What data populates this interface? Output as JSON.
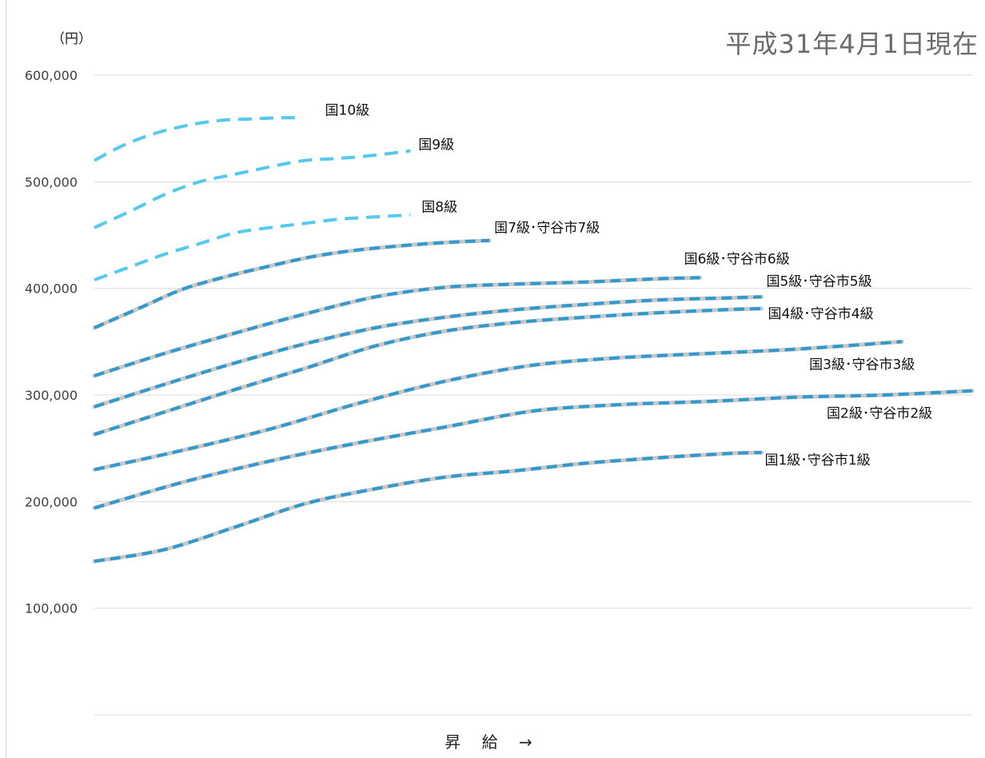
{
  "chart_data": {
    "type": "line",
    "title": "平成31年4月1日現在",
    "unit_label": "（円）",
    "xlabel": "昇 給 →",
    "ylabel": "",
    "ylim": [
      0,
      600000
    ],
    "yticks": [
      100000,
      200000,
      300000,
      400000,
      500000,
      600000
    ],
    "ytick_labels": [
      "100,000",
      "200,000",
      "300,000",
      "400,000",
      "500,000",
      "600,000"
    ],
    "xlim": [
      0,
      100
    ],
    "grid": true,
    "colors": {
      "national": "#3399cc",
      "national_upper": "#55c8f0",
      "city": "#c8c8c8",
      "grid": "#d9d9d9"
    },
    "series": [
      {
        "name": "国10級",
        "style": "upper",
        "x": [
          0,
          3,
          6,
          9,
          12,
          15,
          18,
          21,
          23
        ],
        "y": [
          520000,
          533000,
          543000,
          550000,
          555000,
          558000,
          559000,
          560000,
          560000
        ]
      },
      {
        "name": "国9級",
        "style": "upper",
        "x": [
          0,
          4,
          8,
          12,
          16,
          20,
          24,
          28,
          32,
          36
        ],
        "y": [
          457000,
          472000,
          488000,
          500000,
          507000,
          514000,
          520000,
          522000,
          525000,
          529000
        ]
      },
      {
        "name": "国8級",
        "style": "upper",
        "x": [
          0,
          4,
          8,
          12,
          16,
          20,
          24,
          28,
          32,
          36
        ],
        "y": [
          408000,
          420000,
          432000,
          442000,
          452000,
          457000,
          461000,
          465000,
          467000,
          469000
        ]
      },
      {
        "name": "国7級・守谷市7級",
        "style": "city",
        "x": [
          0,
          5,
          10,
          15,
          20,
          25,
          30,
          35,
          40,
          45
        ],
        "y": [
          363000,
          381000,
          399000,
          411000,
          421000,
          430000,
          436000,
          440000,
          443000,
          445000
        ]
      },
      {
        "name": "国6級・守谷市6級",
        "style": "city",
        "x": [
          0,
          8,
          16,
          24,
          32,
          40,
          48,
          56,
          64,
          69
        ],
        "y": [
          318000,
          339000,
          358000,
          376000,
          392000,
          401000,
          404000,
          406000,
          409000,
          410000
        ]
      },
      {
        "name": "国5級・守谷市5級",
        "style": "city",
        "x": [
          0,
          8,
          16,
          24,
          32,
          40,
          48,
          56,
          64,
          72,
          76
        ],
        "y": [
          289000,
          310000,
          330000,
          348000,
          363000,
          373000,
          380000,
          385000,
          389000,
          391000,
          392000
        ]
      },
      {
        "name": "国4級・守谷市4級",
        "style": "city",
        "x": [
          0,
          8,
          16,
          24,
          32,
          40,
          48,
          56,
          64,
          72,
          76
        ],
        "y": [
          263000,
          284000,
          305000,
          325000,
          346000,
          360000,
          368000,
          373000,
          377000,
          380000,
          381000
        ]
      },
      {
        "name": "国3級・守谷市3級",
        "style": "city",
        "x": [
          0,
          10,
          20,
          30,
          40,
          50,
          60,
          70,
          80,
          92
        ],
        "y": [
          230000,
          248000,
          268000,
          292000,
          313000,
          328000,
          335000,
          339000,
          343000,
          350000
        ]
      },
      {
        "name": "国2級・守谷市2級",
        "style": "city",
        "x": [
          0,
          10,
          20,
          30,
          40,
          50,
          60,
          70,
          80,
          90,
          100
        ],
        "y": [
          194000,
          218000,
          238000,
          255000,
          270000,
          285000,
          291000,
          294000,
          298000,
          300000,
          304000
        ]
      },
      {
        "name": "国1級・守谷市1級",
        "style": "city",
        "x": [
          0,
          8,
          16,
          24,
          32,
          40,
          48,
          56,
          64,
          72,
          76
        ],
        "y": [
          144000,
          155000,
          176000,
          198000,
          212000,
          223000,
          229000,
          236000,
          241000,
          245000,
          246000
        ]
      }
    ],
    "series_labels": [
      {
        "series": "国10級",
        "text": "国10級"
      },
      {
        "series": "国9級",
        "text": "国9級"
      },
      {
        "series": "国8級",
        "text": "国8級"
      },
      {
        "series": "国7級・守谷市7級",
        "text": "国7級･守谷市7級"
      },
      {
        "series": "国6級・守谷市6級",
        "text": "国6級･守谷市6級"
      },
      {
        "series": "国5級・守谷市5級",
        "text": "国5級･守谷市5級"
      },
      {
        "series": "国4級・守谷市4級",
        "text": "国4級･守谷市4級"
      },
      {
        "series": "国3級・守谷市3級",
        "text": "国3級･守谷市3級"
      },
      {
        "series": "国2級・守谷市2級",
        "text": "国2級･守谷市2級"
      },
      {
        "series": "国1級・守谷市1級",
        "text": "国1級･守谷市1級"
      }
    ]
  }
}
